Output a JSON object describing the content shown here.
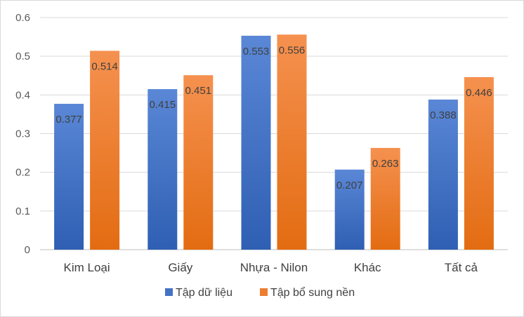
{
  "chart_data": {
    "type": "bar",
    "categories": [
      "Kim Loại",
      "Giấy",
      "Nhựa - Nilon",
      "Khác",
      "Tất cả"
    ],
    "series": [
      {
        "name": "Tập dữ liệu",
        "values": [
          0.377,
          0.415,
          0.553,
          0.207,
          0.388
        ],
        "color": "#4472c4"
      },
      {
        "name": "Tập bổ sung nền",
        "values": [
          0.514,
          0.451,
          0.556,
          0.263,
          0.446
        ],
        "color": "#ed7d31"
      }
    ],
    "data_labels": [
      [
        "0.377",
        "0.415",
        "0.553",
        "0.207",
        "0.388"
      ],
      [
        "0.514",
        "0.451",
        "0.556",
        "0.263",
        "0.446"
      ]
    ],
    "y_ticks": [
      "0",
      "0.1",
      "0.2",
      "0.3",
      "0.4",
      "0.5",
      "0.6"
    ],
    "ylim": [
      0,
      0.6
    ],
    "grid": true,
    "legend_position": "bottom",
    "title": "",
    "xlabel": "",
    "ylabel": ""
  }
}
